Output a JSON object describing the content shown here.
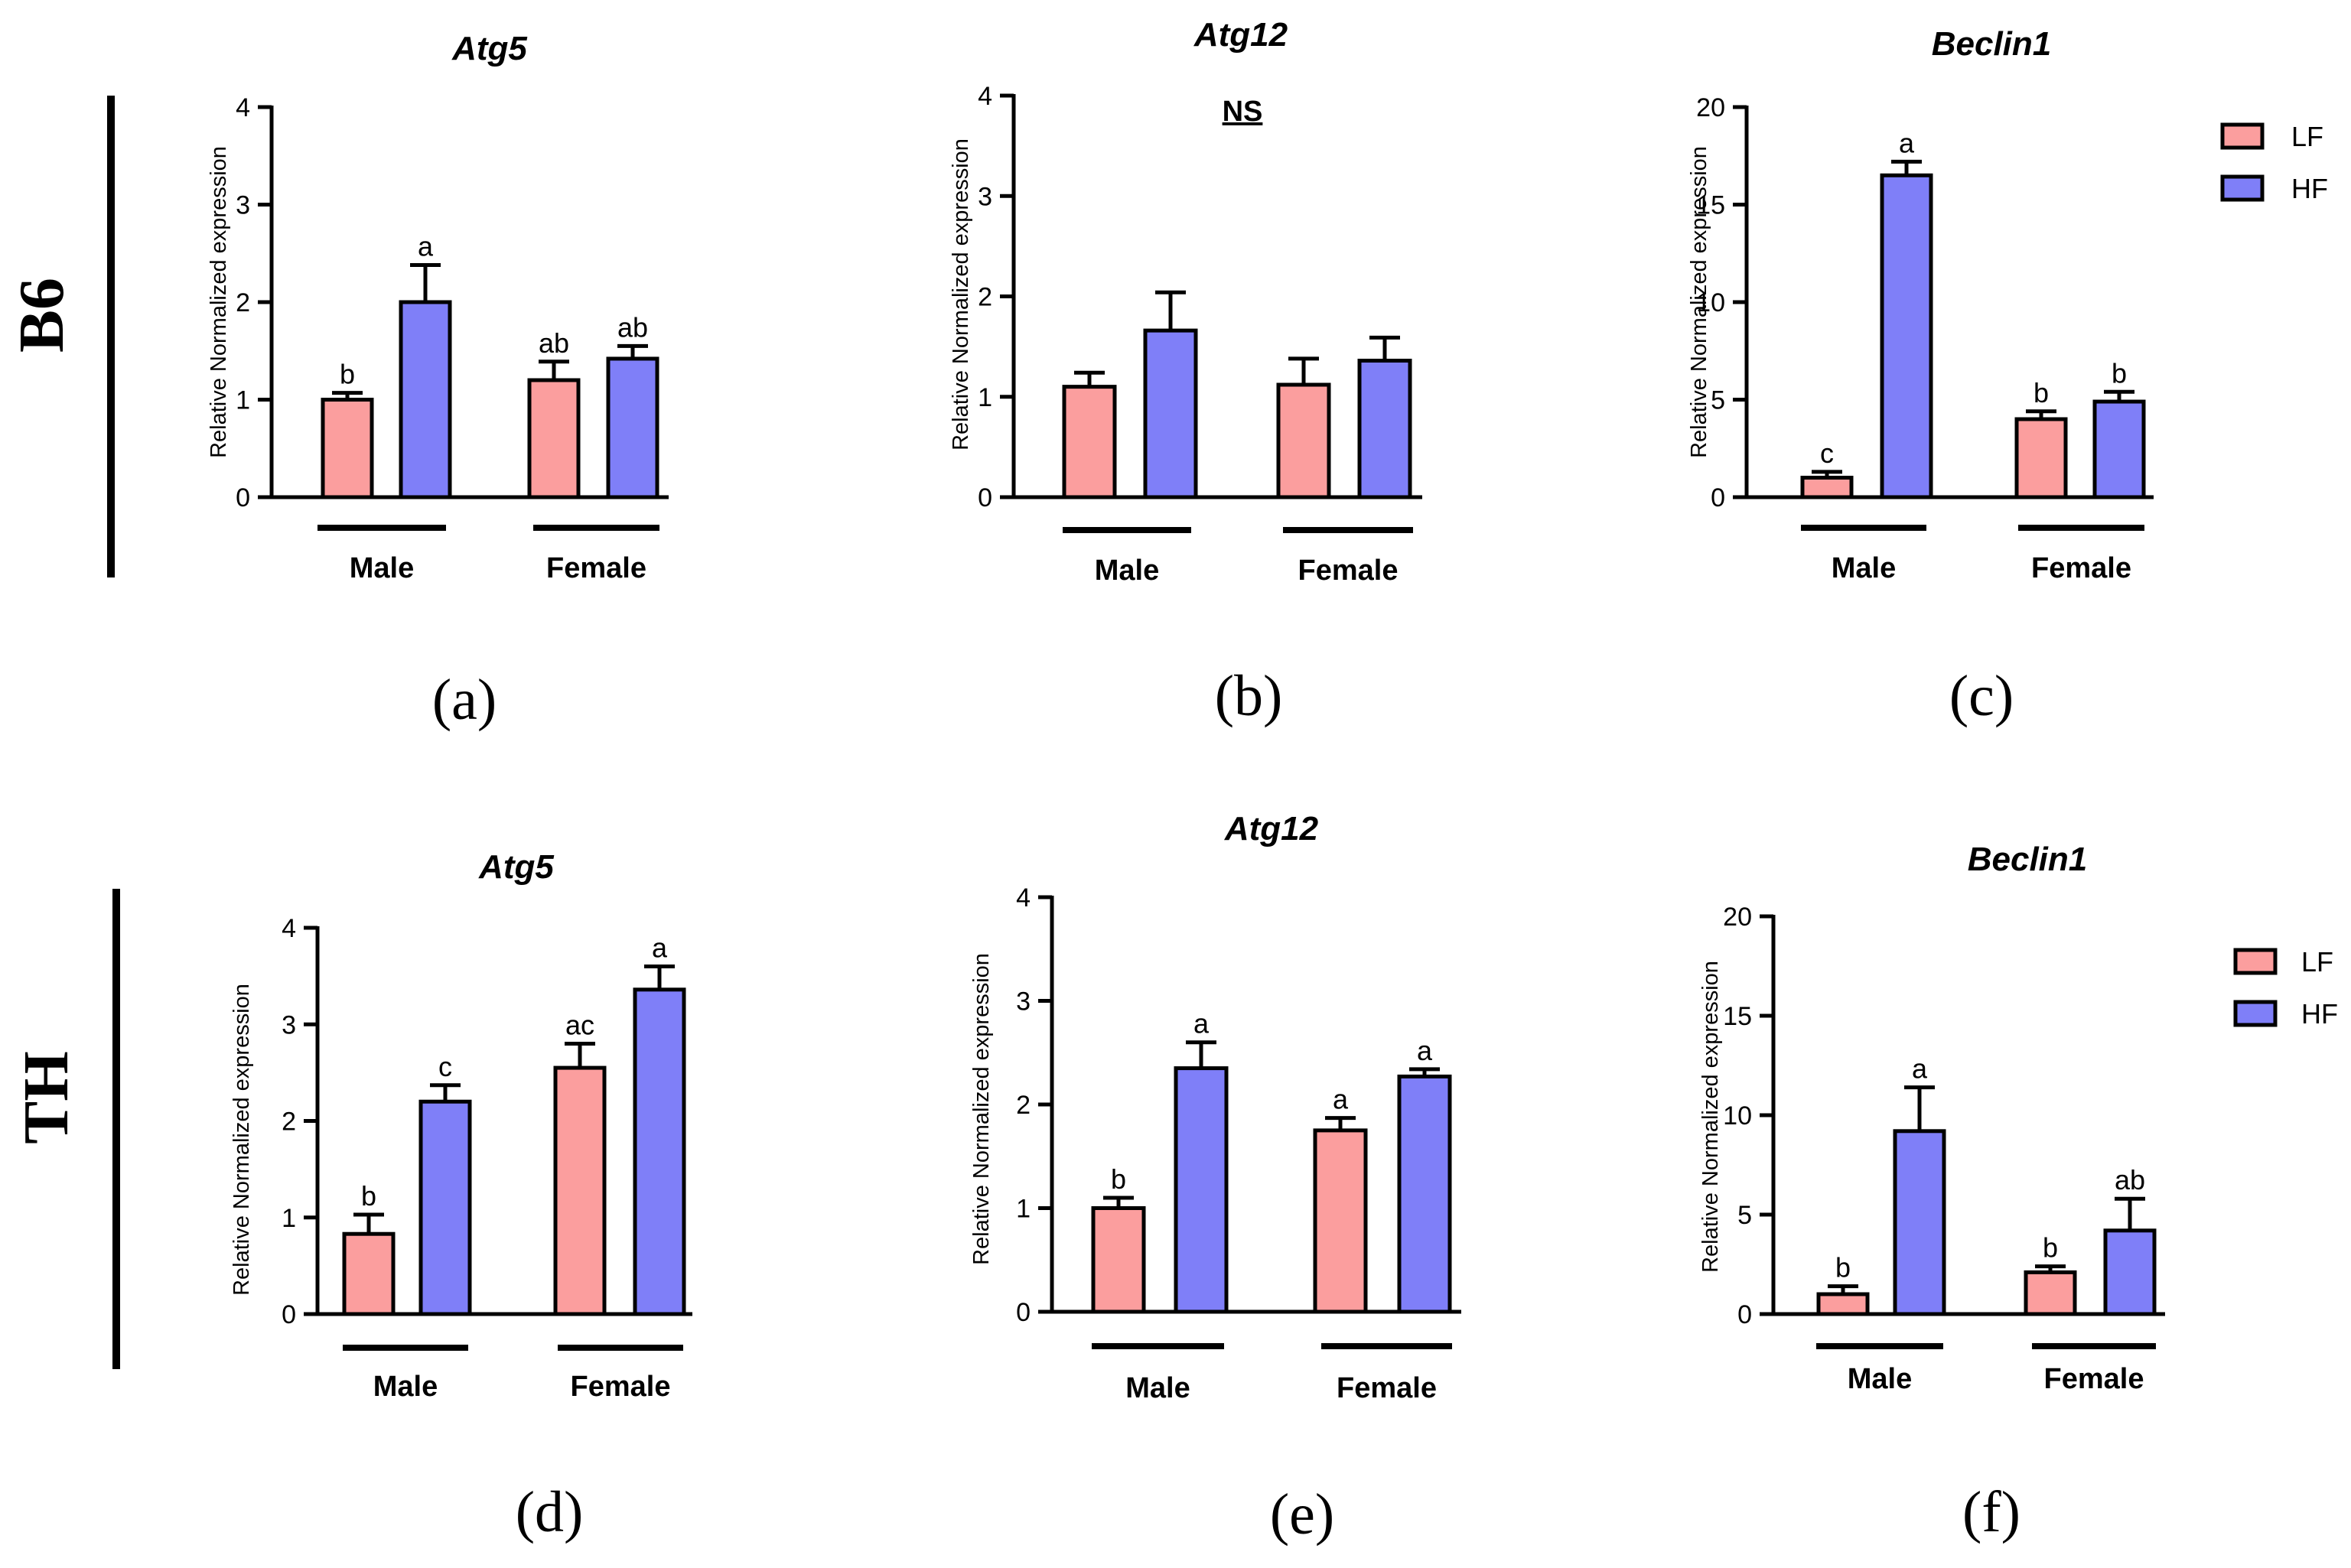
{
  "rows": [
    {
      "label": "B6"
    },
    {
      "label": "TH"
    }
  ],
  "series": [
    {
      "name": "LF",
      "color": "#fb9e9e"
    },
    {
      "name": "HF",
      "color": "#7f7ff8"
    }
  ],
  "chart_data": [
    {
      "type": "bar",
      "panel": "(a)",
      "title": "Atg5",
      "ylabel": "Relative Normalized expression",
      "ylim": [
        0,
        4
      ],
      "yticks": [
        0,
        1,
        2,
        3,
        4
      ],
      "groups": [
        "Male",
        "Female"
      ],
      "series": [
        {
          "name": "LF",
          "values": [
            1.0,
            1.2
          ],
          "errors": [
            0.07,
            0.19
          ],
          "labels": [
            "b",
            "ab"
          ]
        },
        {
          "name": "HF",
          "values": [
            2.0,
            1.42
          ],
          "errors": [
            0.38,
            0.13
          ],
          "labels": [
            "a",
            "ab"
          ]
        }
      ],
      "annotation": ""
    },
    {
      "type": "bar",
      "panel": "(b)",
      "title": "Atg12",
      "ylabel": "Relative Normalized expression",
      "ylim": [
        0,
        4
      ],
      "yticks": [
        0,
        1,
        2,
        3,
        4
      ],
      "groups": [
        "Male",
        "Female"
      ],
      "series": [
        {
          "name": "LF",
          "values": [
            1.1,
            1.12
          ],
          "errors": [
            0.14,
            0.26
          ],
          "labels": [
            "",
            ""
          ]
        },
        {
          "name": "HF",
          "values": [
            1.66,
            1.36
          ],
          "errors": [
            0.38,
            0.23
          ],
          "labels": [
            "",
            ""
          ]
        }
      ],
      "annotation": "NS"
    },
    {
      "type": "bar",
      "panel": "(c)",
      "title": "Beclin1",
      "ylabel": "Relative Normalized expression",
      "ylim": [
        0,
        20
      ],
      "yticks": [
        0,
        5,
        10,
        15,
        20
      ],
      "groups": [
        "Male",
        "Female"
      ],
      "series": [
        {
          "name": "LF",
          "values": [
            1.0,
            4.0
          ],
          "errors": [
            0.3,
            0.4
          ],
          "labels": [
            "c",
            "b"
          ]
        },
        {
          "name": "HF",
          "values": [
            16.5,
            4.9
          ],
          "errors": [
            0.7,
            0.5
          ],
          "labels": [
            "a",
            "b"
          ]
        }
      ],
      "annotation": "",
      "legend": [
        "LF",
        "HF"
      ]
    },
    {
      "type": "bar",
      "panel": "(d)",
      "title": "Atg5",
      "ylabel": "Relative Normalized expression",
      "ylim": [
        0,
        4
      ],
      "yticks": [
        0,
        1,
        2,
        3,
        4
      ],
      "groups": [
        "Male",
        "Female"
      ],
      "series": [
        {
          "name": "LF",
          "values": [
            0.83,
            2.55
          ],
          "errors": [
            0.2,
            0.25
          ],
          "labels": [
            "b",
            "ac"
          ]
        },
        {
          "name": "HF",
          "values": [
            2.2,
            3.36
          ],
          "errors": [
            0.17,
            0.24
          ],
          "labels": [
            "c",
            "a"
          ]
        }
      ],
      "annotation": ""
    },
    {
      "type": "bar",
      "panel": "(e)",
      "title": "Atg12",
      "ylabel": "Relative Normalized expression",
      "ylim": [
        0,
        4
      ],
      "yticks": [
        0,
        1,
        2,
        3,
        4
      ],
      "groups": [
        "Male",
        "Female"
      ],
      "series": [
        {
          "name": "LF",
          "values": [
            1.0,
            1.75
          ],
          "errors": [
            0.1,
            0.12
          ],
          "labels": [
            "b",
            "a"
          ]
        },
        {
          "name": "HF",
          "values": [
            2.35,
            2.27
          ],
          "errors": [
            0.25,
            0.07
          ],
          "labels": [
            "a",
            "a"
          ]
        }
      ],
      "annotation": ""
    },
    {
      "type": "bar",
      "panel": "(f)",
      "title": "Beclin1",
      "ylabel": "Relative Normalized expression",
      "ylim": [
        0,
        20
      ],
      "yticks": [
        0,
        5,
        10,
        15,
        20
      ],
      "groups": [
        "Male",
        "Female"
      ],
      "series": [
        {
          "name": "LF",
          "values": [
            1.0,
            2.1
          ],
          "errors": [
            0.4,
            0.3
          ],
          "labels": [
            "b",
            "b"
          ]
        },
        {
          "name": "HF",
          "values": [
            9.2,
            4.2
          ],
          "errors": [
            2.2,
            1.6
          ],
          "labels": [
            "a",
            "ab"
          ]
        }
      ],
      "annotation": "",
      "legend": [
        "LF",
        "HF"
      ]
    }
  ]
}
